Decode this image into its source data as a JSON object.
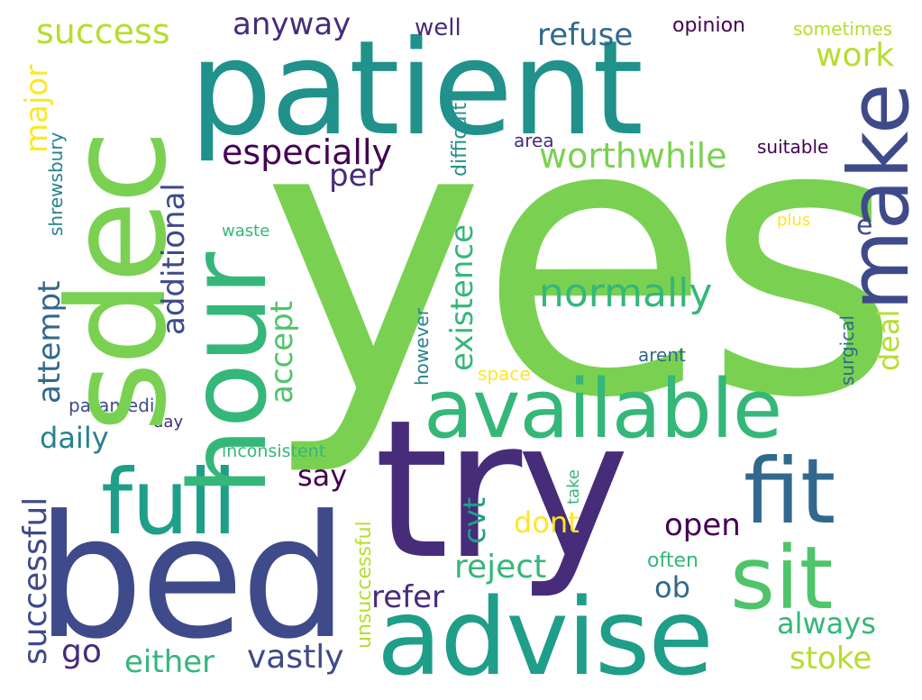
{
  "words": {
    "yes": "yes",
    "patient": "patient",
    "sdec": "sdec",
    "bed": "bed",
    "try": "try",
    "hour": "hour",
    "advise": "advise",
    "available": "available",
    "make": "make",
    "full": "full",
    "fit": "fit",
    "sit": "sit",
    "normally": "normally",
    "success": "success",
    "anyway": "anyway",
    "well": "well",
    "opinion": "opinion",
    "sometimes": "sometimes",
    "refuse": "refuse",
    "work": "work",
    "major": "major",
    "shrewsbury": "shrewsbury",
    "difficult": "difficult",
    "especially": "especially",
    "per": "per",
    "worthwhile": "worthwhile",
    "area": "area",
    "suitable": "suitable",
    "additional": "additional",
    "existence": "existence",
    "waste": "waste",
    "e": "e",
    "plus": "plus",
    "attempt": "attempt",
    "accept": "accept",
    "however": "however",
    "deal": "deal",
    "surgical": "surgical",
    "arent": "arent",
    "space": "space",
    "paramedic": "paramedic",
    "daily": "daily",
    "day": "day",
    "inconsistent": "inconsistent",
    "successful": "successful",
    "say": "say",
    "cvt": "cvt",
    "take": "take",
    "unsuccessful": "unsuccessful",
    "dont": "dont",
    "open": "open",
    "reject": "reject",
    "often": "often",
    "ob": "ob",
    "refer": "refer",
    "always": "always",
    "go": "go",
    "either": "either",
    "vastly": "vastly",
    "stoke": "stoke"
  },
  "colors": {
    "yellow": "#fde725",
    "lime": "#b5de2b",
    "green": "#7ad151",
    "lightgreen": "#4fc46a",
    "mediumgreen": "#35b779",
    "teal": "#1f9e89",
    "tealblue": "#21918c",
    "blueteal": "#26828e",
    "blue": "#31688e",
    "darkblue": "#3e4a89",
    "indigo": "#472c7a",
    "purple": "#440154"
  }
}
